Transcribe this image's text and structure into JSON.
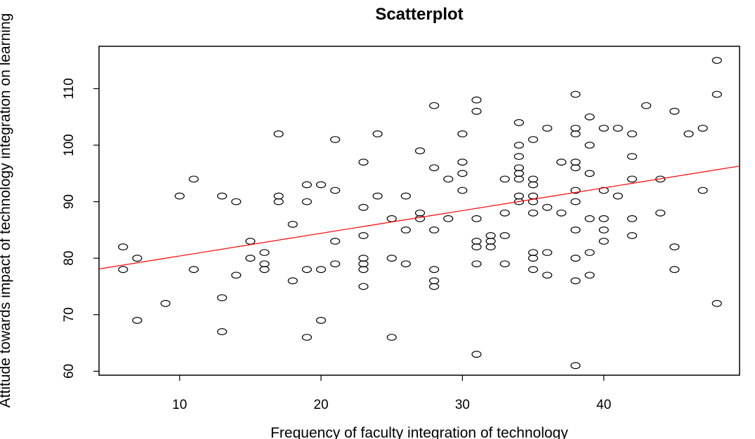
{
  "chart_data": {
    "type": "scatter",
    "title": "Scatterplot",
    "xlabel": "Frequency of faculty integration of technology",
    "ylabel": "Attitude towards impact of technology integration on learning",
    "xlim": [
      4.3,
      49.6
    ],
    "ylim": [
      59.3,
      117.5
    ],
    "xticks": [
      10,
      20,
      30,
      40
    ],
    "yticks": [
      60,
      70,
      80,
      90,
      100,
      110
    ],
    "grid": false,
    "legend": "none",
    "point_color": "#000000",
    "regression_line": {
      "color": "#ff0000",
      "x": [
        4.3,
        49.6
      ],
      "y": [
        78.1,
        96.3
      ]
    },
    "points": [
      [
        6,
        82
      ],
      [
        6,
        78
      ],
      [
        7,
        80
      ],
      [
        7,
        69
      ],
      [
        9,
        72
      ],
      [
        10,
        91
      ],
      [
        11,
        94
      ],
      [
        11,
        78
      ],
      [
        13,
        91
      ],
      [
        13,
        73
      ],
      [
        13,
        67
      ],
      [
        14,
        90
      ],
      [
        14,
        77
      ],
      [
        15,
        83
      ],
      [
        15,
        80
      ],
      [
        16,
        81
      ],
      [
        16,
        79
      ],
      [
        16,
        78
      ],
      [
        17,
        102
      ],
      [
        17,
        91
      ],
      [
        17,
        90
      ],
      [
        18,
        86
      ],
      [
        18,
        76
      ],
      [
        19,
        93
      ],
      [
        19,
        90
      ],
      [
        19,
        78
      ],
      [
        19,
        66
      ],
      [
        20,
        93
      ],
      [
        20,
        78
      ],
      [
        20,
        69
      ],
      [
        21,
        101
      ],
      [
        21,
        92
      ],
      [
        21,
        83
      ],
      [
        21,
        79
      ],
      [
        23,
        97
      ],
      [
        23,
        89
      ],
      [
        23,
        84
      ],
      [
        23,
        80
      ],
      [
        23,
        79
      ],
      [
        23,
        78
      ],
      [
        23,
        75
      ],
      [
        24,
        102
      ],
      [
        24,
        91
      ],
      [
        25,
        87
      ],
      [
        25,
        80
      ],
      [
        25,
        66
      ],
      [
        26,
        91
      ],
      [
        26,
        85
      ],
      [
        26,
        79
      ],
      [
        27,
        99
      ],
      [
        27,
        88
      ],
      [
        27,
        87
      ],
      [
        28,
        107
      ],
      [
        28,
        96
      ],
      [
        28,
        85
      ],
      [
        28,
        78
      ],
      [
        28,
        76
      ],
      [
        28,
        75
      ],
      [
        29,
        94
      ],
      [
        29,
        87
      ],
      [
        30,
        102
      ],
      [
        30,
        97
      ],
      [
        30,
        95
      ],
      [
        30,
        92
      ],
      [
        31,
        108
      ],
      [
        31,
        106
      ],
      [
        31,
        87
      ],
      [
        31,
        83
      ],
      [
        31,
        82
      ],
      [
        31,
        79
      ],
      [
        31,
        63
      ],
      [
        32,
        84
      ],
      [
        32,
        83
      ],
      [
        32,
        82
      ],
      [
        33,
        94
      ],
      [
        33,
        88
      ],
      [
        33,
        84
      ],
      [
        33,
        79
      ],
      [
        34,
        104
      ],
      [
        34,
        100
      ],
      [
        34,
        98
      ],
      [
        34,
        96
      ],
      [
        34,
        95
      ],
      [
        34,
        94
      ],
      [
        34,
        91
      ],
      [
        34,
        90
      ],
      [
        35,
        101
      ],
      [
        35,
        94
      ],
      [
        35,
        93
      ],
      [
        35,
        91
      ],
      [
        35,
        90
      ],
      [
        35,
        88
      ],
      [
        35,
        81
      ],
      [
        35,
        80
      ],
      [
        35,
        78
      ],
      [
        36,
        103
      ],
      [
        36,
        89
      ],
      [
        36,
        81
      ],
      [
        36,
        77
      ],
      [
        37,
        97
      ],
      [
        37,
        88
      ],
      [
        38,
        109
      ],
      [
        38,
        103
      ],
      [
        38,
        102
      ],
      [
        38,
        97
      ],
      [
        38,
        96
      ],
      [
        38,
        92
      ],
      [
        38,
        90
      ],
      [
        38,
        85
      ],
      [
        38,
        80
      ],
      [
        38,
        76
      ],
      [
        38,
        61
      ],
      [
        39,
        105
      ],
      [
        39,
        100
      ],
      [
        39,
        95
      ],
      [
        39,
        87
      ],
      [
        39,
        81
      ],
      [
        39,
        77
      ],
      [
        40,
        103
      ],
      [
        40,
        92
      ],
      [
        40,
        87
      ],
      [
        40,
        85
      ],
      [
        40,
        83
      ],
      [
        41,
        103
      ],
      [
        41,
        91
      ],
      [
        42,
        102
      ],
      [
        42,
        98
      ],
      [
        42,
        94
      ],
      [
        42,
        87
      ],
      [
        42,
        84
      ],
      [
        43,
        107
      ],
      [
        44,
        94
      ],
      [
        44,
        88
      ],
      [
        45,
        106
      ],
      [
        45,
        82
      ],
      [
        45,
        78
      ],
      [
        46,
        102
      ],
      [
        47,
        103
      ],
      [
        47,
        92
      ],
      [
        48,
        115
      ],
      [
        48,
        109
      ],
      [
        48,
        72
      ]
    ]
  }
}
